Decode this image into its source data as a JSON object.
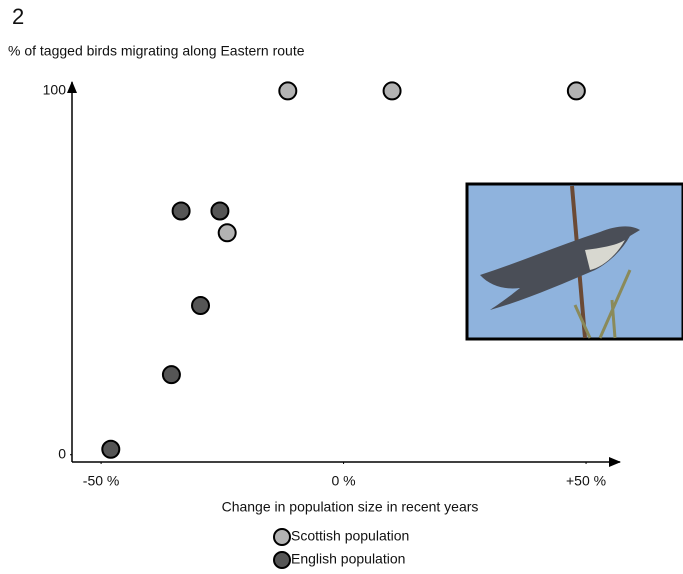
{
  "chart_data": {
    "type": "scatter",
    "panel_label": "2",
    "y_label": "% of tagged birds migrating along Eastern route",
    "x_label": "Change in population size in recent years",
    "xlim": [
      -56,
      57
    ],
    "ylim": [
      -2,
      103
    ],
    "xticks": [
      {
        "value": -50,
        "label": "-50 %"
      },
      {
        "value": 0,
        "label": "0 %"
      },
      {
        "value": 50,
        "label": "+50 %"
      }
    ],
    "yticks": [
      0,
      100
    ],
    "grid": false,
    "series": [
      {
        "name": "Scottish population",
        "color": "#b3b3b3",
        "x": [
          -11.5,
          10,
          48,
          -24
        ],
        "values": [
          100,
          100,
          100,
          61
        ]
      },
      {
        "name": "English population",
        "color": "#555555",
        "x": [
          -33.5,
          -25.5,
          -29.5,
          -35.5,
          -48
        ],
        "values": [
          67,
          67,
          41,
          22,
          1.5
        ]
      }
    ]
  }
}
